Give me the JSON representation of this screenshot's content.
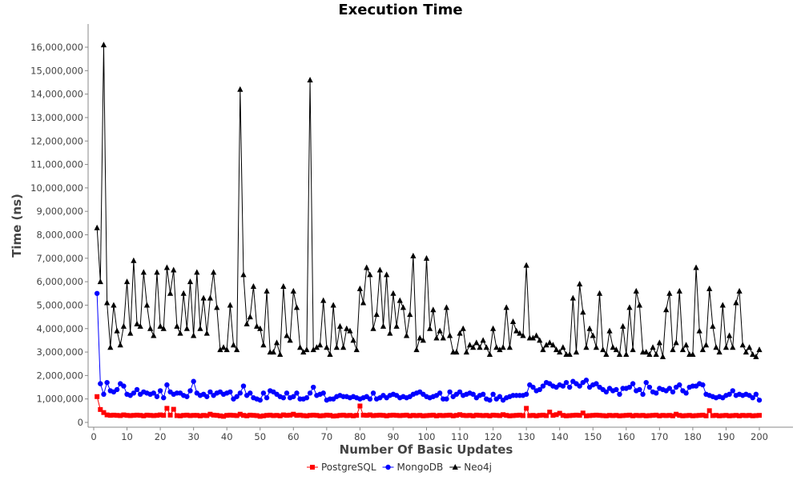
{
  "chart_data": {
    "type": "line",
    "title": "Execution Time",
    "xlabel": "Number Of Basic Updates",
    "ylabel": "Time (ns)",
    "xlim": [
      0,
      200
    ],
    "ylim": [
      0,
      16000000
    ],
    "x_ticks": [
      0,
      10,
      20,
      30,
      40,
      50,
      60,
      70,
      80,
      90,
      100,
      110,
      120,
      130,
      140,
      150,
      160,
      170,
      180,
      190,
      200
    ],
    "y_ticks": [
      0,
      1000000,
      2000000,
      3000000,
      4000000,
      5000000,
      6000000,
      7000000,
      8000000,
      9000000,
      10000000,
      11000000,
      12000000,
      13000000,
      14000000,
      15000000,
      16000000
    ],
    "y_tick_labels": [
      "0",
      "1,000,000",
      "2,000,000",
      "3,000,000",
      "4,000,000",
      "5,000,000",
      "6,000,000",
      "7,000,000",
      "8,000,000",
      "9,000,000",
      "10,000,000",
      "11,000,000",
      "12,000,000",
      "13,000,000",
      "14,000,000",
      "15,000,000",
      "16,000,000"
    ],
    "x_tick_labels": [
      "0",
      "10",
      "20",
      "30",
      "40",
      "50",
      "60",
      "70",
      "80",
      "90",
      "100",
      "110",
      "120",
      "130",
      "140",
      "150",
      "160",
      "170",
      "180",
      "190",
      "200"
    ],
    "grid": false,
    "legend_position": "bottom-center",
    "x": [
      1,
      2,
      3,
      4,
      5,
      6,
      7,
      8,
      9,
      10,
      11,
      12,
      13,
      14,
      15,
      16,
      17,
      18,
      19,
      20,
      21,
      22,
      23,
      24,
      25,
      26,
      27,
      28,
      29,
      30,
      31,
      32,
      33,
      34,
      35,
      36,
      37,
      38,
      39,
      40,
      41,
      42,
      43,
      44,
      45,
      46,
      47,
      48,
      49,
      50,
      51,
      52,
      53,
      54,
      55,
      56,
      57,
      58,
      59,
      60,
      61,
      62,
      63,
      64,
      65,
      66,
      67,
      68,
      69,
      70,
      71,
      72,
      73,
      74,
      75,
      76,
      77,
      78,
      79,
      80,
      81,
      82,
      83,
      84,
      85,
      86,
      87,
      88,
      89,
      90,
      91,
      92,
      93,
      94,
      95,
      96,
      97,
      98,
      99,
      100,
      101,
      102,
      103,
      104,
      105,
      106,
      107,
      108,
      109,
      110,
      111,
      112,
      113,
      114,
      115,
      116,
      117,
      118,
      119,
      120,
      121,
      122,
      123,
      124,
      125,
      126,
      127,
      128,
      129,
      130,
      131,
      132,
      133,
      134,
      135,
      136,
      137,
      138,
      139,
      140,
      141,
      142,
      143,
      144,
      145,
      146,
      147,
      148,
      149,
      150,
      151,
      152,
      153,
      154,
      155,
      156,
      157,
      158,
      159,
      160,
      161,
      162,
      163,
      164,
      165,
      166,
      167,
      168,
      169,
      170,
      171,
      172,
      173,
      174,
      175,
      176,
      177,
      178,
      179,
      180,
      181,
      182,
      183,
      184,
      185,
      186,
      187,
      188,
      189,
      190,
      191,
      192,
      193,
      194,
      195,
      196,
      197,
      198,
      199,
      200
    ],
    "series": [
      {
        "name": "PostgreSQL",
        "color": "#ff0000",
        "marker": "square",
        "values": [
          1100000,
          550000,
          420000,
          320000,
          300000,
          310000,
          300000,
          290000,
          320000,
          300000,
          290000,
          300000,
          310000,
          300000,
          280000,
          310000,
          300000,
          290000,
          300000,
          320000,
          300000,
          600000,
          310000,
          560000,
          290000,
          280000,
          300000,
          310000,
          290000,
          300000,
          300000,
          280000,
          300000,
          290000,
          350000,
          310000,
          300000,
          280000,
          260000,
          300000,
          310000,
          300000,
          290000,
          350000,
          300000,
          280000,
          310000,
          300000,
          290000,
          260000,
          280000,
          300000,
          310000,
          290000,
          300000,
          280000,
          320000,
          300000,
          310000,
          350000,
          300000,
          310000,
          290000,
          280000,
          300000,
          310000,
          300000,
          280000,
          290000,
          310000,
          300000,
          270000,
          280000,
          300000,
          310000,
          290000,
          300000,
          280000,
          300000,
          700000,
          310000,
          300000,
          320000,
          290000,
          300000,
          310000,
          300000,
          280000,
          300000,
          310000,
          300000,
          290000,
          300000,
          310000,
          280000,
          300000,
          290000,
          300000,
          280000,
          290000,
          300000,
          310000,
          280000,
          300000,
          290000,
          300000,
          310000,
          280000,
          300000,
          330000,
          300000,
          290000,
          300000,
          280000,
          310000,
          300000,
          290000,
          300000,
          280000,
          310000,
          300000,
          290000,
          330000,
          300000,
          280000,
          290000,
          300000,
          310000,
          290000,
          600000,
          290000,
          300000,
          280000,
          300000,
          310000,
          290000,
          440000,
          300000,
          330000,
          390000,
          300000,
          280000,
          290000,
          300000,
          310000,
          300000,
          400000,
          280000,
          290000,
          300000,
          310000,
          300000,
          290000,
          280000,
          300000,
          290000,
          300000,
          280000,
          290000,
          300000,
          310000,
          280000,
          300000,
          290000,
          300000,
          280000,
          290000,
          300000,
          310000,
          280000,
          300000,
          290000,
          300000,
          280000,
          350000,
          300000,
          280000,
          290000,
          300000,
          280000,
          290000,
          300000,
          310000,
          280000,
          500000,
          290000,
          300000,
          280000,
          290000,
          300000,
          280000,
          290000,
          300000,
          280000,
          300000,
          290000,
          300000,
          280000,
          290000,
          300000
        ]
      },
      {
        "name": "MongoDB",
        "color": "#0000ff",
        "marker": "circle",
        "values": [
          5500000,
          1650000,
          1200000,
          1700000,
          1350000,
          1300000,
          1400000,
          1650000,
          1550000,
          1200000,
          1150000,
          1250000,
          1400000,
          1200000,
          1300000,
          1250000,
          1200000,
          1250000,
          1100000,
          1350000,
          1050000,
          1600000,
          1300000,
          1200000,
          1250000,
          1250000,
          1150000,
          1100000,
          1350000,
          1750000,
          1250000,
          1150000,
          1200000,
          1100000,
          1300000,
          1150000,
          1250000,
          1300000,
          1200000,
          1250000,
          1300000,
          1000000,
          1100000,
          1250000,
          1550000,
          1150000,
          1250000,
          1050000,
          1000000,
          950000,
          1250000,
          1050000,
          1350000,
          1300000,
          1200000,
          1100000,
          1050000,
          1250000,
          1050000,
          1100000,
          1250000,
          1000000,
          1000000,
          1050000,
          1250000,
          1500000,
          1150000,
          1200000,
          1250000,
          950000,
          1000000,
          1000000,
          1100000,
          1150000,
          1100000,
          1100000,
          1050000,
          1100000,
          1050000,
          1000000,
          1050000,
          1100000,
          1000000,
          1250000,
          1000000,
          1050000,
          1150000,
          1050000,
          1150000,
          1200000,
          1150000,
          1050000,
          1100000,
          1050000,
          1100000,
          1200000,
          1250000,
          1300000,
          1200000,
          1100000,
          1050000,
          1100000,
          1150000,
          1250000,
          1000000,
          1000000,
          1300000,
          1100000,
          1200000,
          1300000,
          1150000,
          1200000,
          1250000,
          1200000,
          1050000,
          1150000,
          1200000,
          1000000,
          950000,
          1200000,
          1000000,
          1100000,
          950000,
          1050000,
          1100000,
          1150000,
          1150000,
          1150000,
          1150000,
          1200000,
          1600000,
          1500000,
          1350000,
          1400000,
          1550000,
          1700000,
          1650000,
          1550000,
          1500000,
          1600000,
          1550000,
          1700000,
          1500000,
          1750000,
          1650000,
          1550000,
          1700000,
          1800000,
          1500000,
          1600000,
          1650000,
          1500000,
          1400000,
          1300000,
          1450000,
          1350000,
          1400000,
          1200000,
          1450000,
          1450000,
          1500000,
          1650000,
          1350000,
          1400000,
          1200000,
          1700000,
          1500000,
          1300000,
          1250000,
          1450000,
          1400000,
          1350000,
          1450000,
          1300000,
          1500000,
          1600000,
          1350000,
          1250000,
          1500000,
          1550000,
          1550000,
          1650000,
          1600000,
          1200000,
          1150000,
          1100000,
          1050000,
          1100000,
          1050000,
          1150000,
          1200000,
          1350000,
          1150000,
          1200000,
          1150000,
          1200000,
          1150000,
          1050000,
          1200000,
          950000
        ]
      },
      {
        "name": "Neo4j",
        "color": "#000000",
        "marker": "triangle",
        "values": [
          8300000,
          6000000,
          16100000,
          5100000,
          3200000,
          5000000,
          3900000,
          3300000,
          4100000,
          6000000,
          3800000,
          6900000,
          4200000,
          4100000,
          6400000,
          5000000,
          4000000,
          3700000,
          6400000,
          4100000,
          4000000,
          6600000,
          5500000,
          6500000,
          4100000,
          3800000,
          5500000,
          4000000,
          6000000,
          3700000,
          6400000,
          4000000,
          5300000,
          3800000,
          5300000,
          6400000,
          4900000,
          3100000,
          3200000,
          3100000,
          5000000,
          3300000,
          3100000,
          14200000,
          6300000,
          4200000,
          4500000,
          5800000,
          4100000,
          4000000,
          3300000,
          5600000,
          3000000,
          3000000,
          3400000,
          2900000,
          5800000,
          3700000,
          3500000,
          5600000,
          4900000,
          3200000,
          3000000,
          3100000,
          14600000,
          3100000,
          3200000,
          3300000,
          5200000,
          3200000,
          2900000,
          5000000,
          3200000,
          4100000,
          3200000,
          4000000,
          3900000,
          3500000,
          3100000,
          5700000,
          5100000,
          6600000,
          6300000,
          4000000,
          4600000,
          6500000,
          4100000,
          6300000,
          3800000,
          5500000,
          4100000,
          5200000,
          4900000,
          3700000,
          4600000,
          7100000,
          3100000,
          3600000,
          3500000,
          7000000,
          4000000,
          4800000,
          3600000,
          3900000,
          3600000,
          4900000,
          3700000,
          3000000,
          3000000,
          3800000,
          4000000,
          3000000,
          3300000,
          3200000,
          3400000,
          3200000,
          3500000,
          3200000,
          2900000,
          4000000,
          3200000,
          3100000,
          3200000,
          4900000,
          3200000,
          4300000,
          3900000,
          3800000,
          3700000,
          6700000,
          3600000,
          3600000,
          3700000,
          3500000,
          3100000,
          3300000,
          3400000,
          3300000,
          3100000,
          3000000,
          3200000,
          2900000,
          2900000,
          5300000,
          3000000,
          5900000,
          4700000,
          3200000,
          4000000,
          3700000,
          3200000,
          5500000,
          3100000,
          2900000,
          3900000,
          3200000,
          3100000,
          2900000,
          4100000,
          2900000,
          4900000,
          3100000,
          5600000,
          5000000,
          3000000,
          3000000,
          2900000,
          3200000,
          2900000,
          3400000,
          2800000,
          4800000,
          5500000,
          3100000,
          3400000,
          5600000,
          3100000,
          3300000,
          2900000,
          2900000,
          6600000,
          3900000,
          3100000,
          3300000,
          5700000,
          4100000,
          3200000,
          3000000,
          5000000,
          3200000,
          3700000,
          3200000,
          5100000,
          5600000,
          3300000,
          3000000,
          3200000,
          2900000,
          2800000,
          3100000
        ]
      }
    ]
  }
}
